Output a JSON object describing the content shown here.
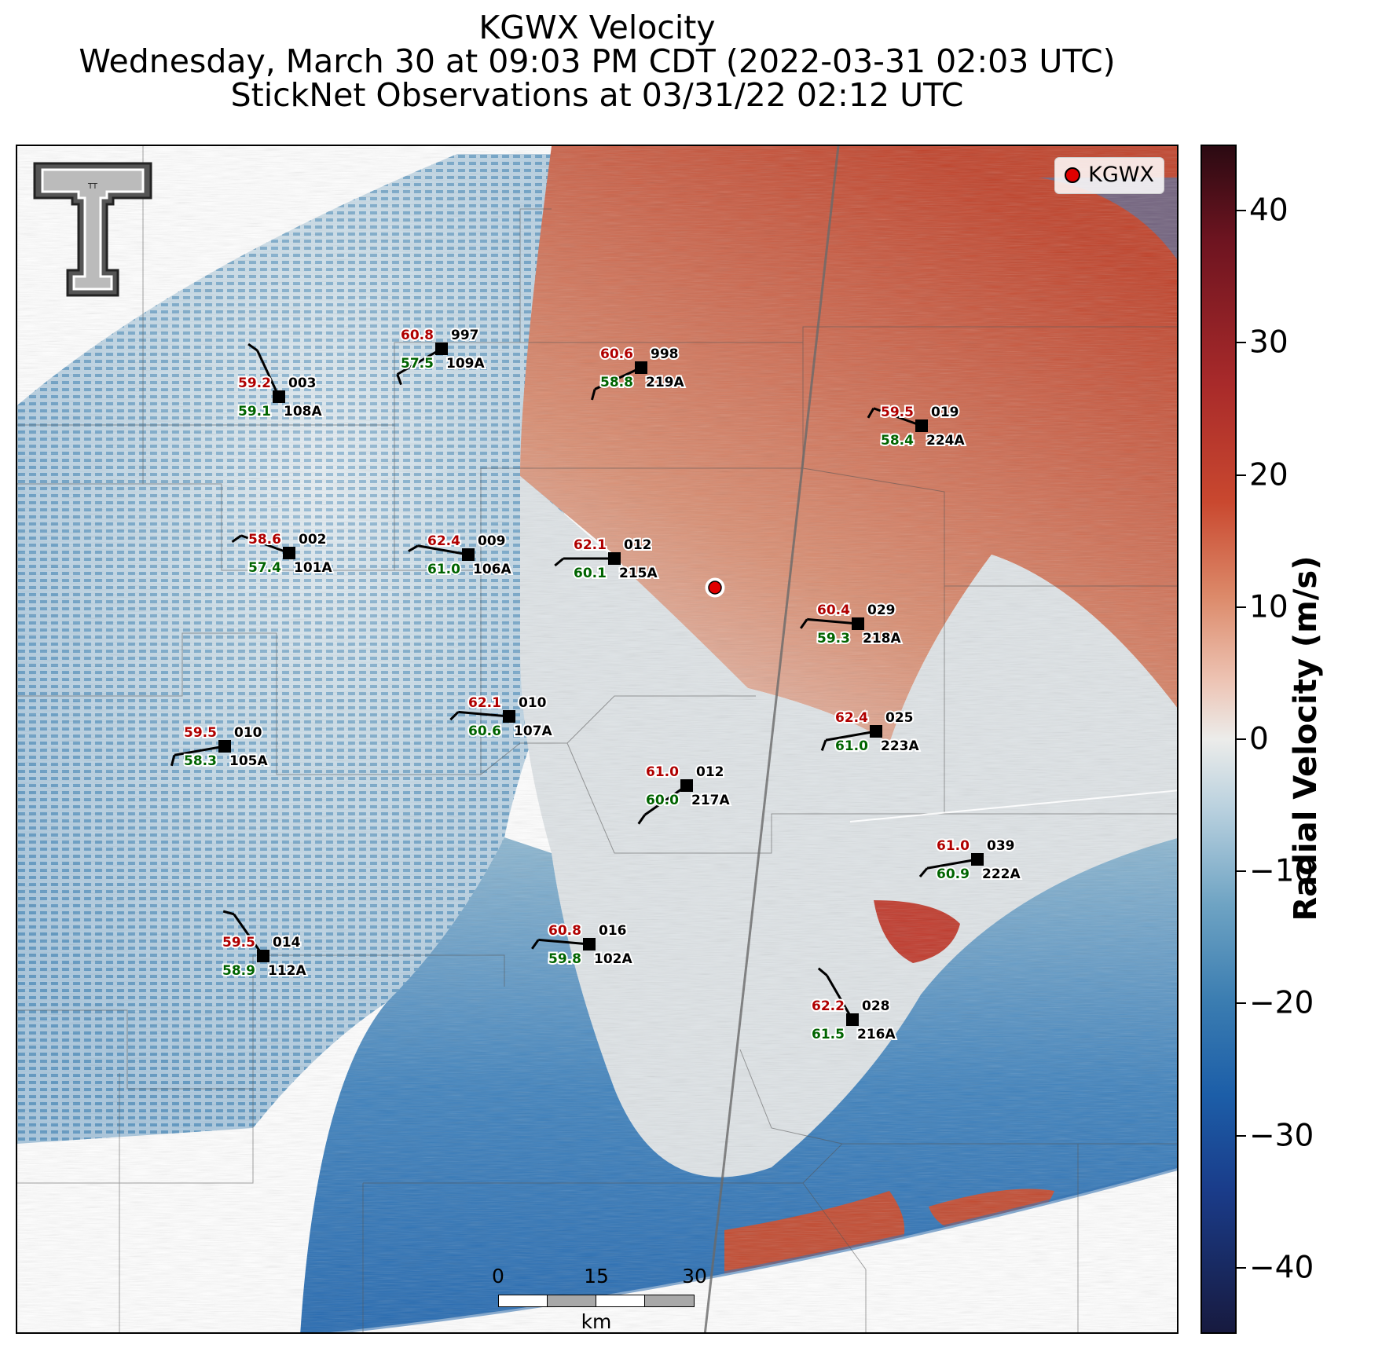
{
  "title": {
    "line1": "KGWX Velocity",
    "line2": "Wednesday, March 30 at 09:03 PM CDT (2022-03-31 02:03 UTC)",
    "line3": "StickNet Observations at 03/31/22 02:12 UTC"
  },
  "legend": {
    "label": "KGWX",
    "color": "#e00000"
  },
  "logo": {
    "text": "TT"
  },
  "colorbar": {
    "label": "Radial Velocity (m/s)",
    "ticks": [
      "40",
      "30",
      "20",
      "10",
      "0",
      "−10",
      "−20",
      "−30",
      "−40"
    ],
    "range": [
      -45,
      45
    ]
  },
  "scale_bar": {
    "labels": [
      "0",
      "15",
      "30"
    ],
    "unit": "km"
  },
  "stations": [
    {
      "id": "997",
      "temp": "60.8",
      "dew": "57.5",
      "name": "109A"
    },
    {
      "id": "998",
      "temp": "60.6",
      "dew": "58.8",
      "name": "219A"
    },
    {
      "id": "003",
      "temp": "59.2",
      "dew": "59.1",
      "name": "108A"
    },
    {
      "id": "019",
      "temp": "59.5",
      "dew": "58.4",
      "name": "224A"
    },
    {
      "id": "002",
      "temp": "58.6",
      "dew": "57.4",
      "name": "101A"
    },
    {
      "id": "009",
      "temp": "62.4",
      "dew": "61.0",
      "name": "106A"
    },
    {
      "id": "012",
      "temp": "62.1",
      "dew": "60.1",
      "name": "215A"
    },
    {
      "id": "029",
      "temp": "60.4",
      "dew": "59.3",
      "name": "218A"
    },
    {
      "id": "010",
      "temp": "62.1",
      "dew": "60.6",
      "name": "107A"
    },
    {
      "id": "010",
      "temp": "59.5",
      "dew": "58.3",
      "name": "105A"
    },
    {
      "id": "025",
      "temp": "62.4",
      "dew": "61.0",
      "name": "223A"
    },
    {
      "id": "012",
      "temp": "61.0",
      "dew": "60.0",
      "name": "217A"
    },
    {
      "id": "039",
      "temp": "61.0",
      "dew": "60.9",
      "name": "222A"
    },
    {
      "id": "016",
      "temp": "60.8",
      "dew": "59.8",
      "name": "102A"
    },
    {
      "id": "014",
      "temp": "59.5",
      "dew": "58.9",
      "name": "112A"
    },
    {
      "id": "028",
      "temp": "62.2",
      "dew": "61.5",
      "name": "216A"
    }
  ],
  "colors": {
    "temp": "#b00000",
    "dew": "#006400",
    "radar_site": "#e00000"
  }
}
